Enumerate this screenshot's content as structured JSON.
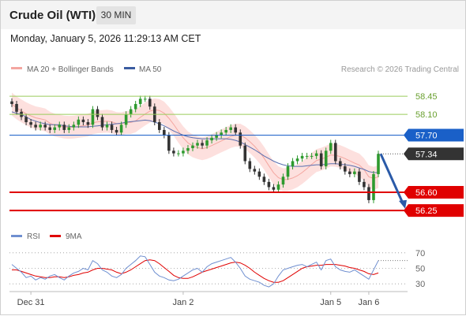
{
  "header": {
    "title": "Crude Oil (WTI)",
    "timeframe": "30 MIN",
    "timestamp": "Monday, January 5, 2026 11:29:13 AM CET"
  },
  "legend": {
    "items": [
      {
        "label": "MA 20 + Bollinger Bands",
        "color": "#f4a6a0"
      },
      {
        "label": "MA 50",
        "color": "#3a5ba0"
      }
    ],
    "rsi_items": [
      {
        "label": "RSI",
        "color": "#6f8fd0"
      },
      {
        "label": "9MA",
        "color": "#e00000"
      }
    ]
  },
  "copyright": "Research © 2026 Trading Central",
  "colors": {
    "pivot": "#1a60c8",
    "support": "#e00000",
    "resistance": "#9acc5a",
    "current": "#333333",
    "arrow": "#2a5aa8",
    "candle_up": "#2e9a2e",
    "candle_down": "#333333",
    "band": "#fde0de"
  },
  "chart_data": [
    {
      "type": "candlestick",
      "ylim": [
        56.1,
        58.8
      ],
      "levels": [
        {
          "value": 58.45,
          "label": "58.45",
          "kind": "resistance"
        },
        {
          "value": 58.1,
          "label": "58.10",
          "kind": "resistance"
        },
        {
          "value": 57.7,
          "label": "57.70",
          "kind": "pivot"
        },
        {
          "value": 57.34,
          "label": "57.34",
          "kind": "current"
        },
        {
          "value": 56.6,
          "label": "56.60",
          "kind": "support"
        },
        {
          "value": 56.25,
          "label": "56.25",
          "kind": "support"
        }
      ],
      "x_ticks": [
        "Dec 31",
        "Jan 2",
        "Jan 5",
        "Jan 6"
      ],
      "series": [
        {
          "name": "Price",
          "values": [
            58.3,
            58.15,
            58.05,
            57.95,
            57.9,
            57.85,
            57.9,
            57.85,
            57.8,
            57.85,
            57.9,
            57.8,
            57.85,
            57.9,
            58.0,
            57.95,
            57.9,
            58.2,
            58.05,
            57.85,
            57.9,
            57.8,
            57.75,
            57.9,
            58.1,
            58.2,
            58.3,
            58.4,
            58.4,
            58.25,
            57.95,
            57.8,
            57.7,
            57.4,
            57.35,
            57.35,
            57.4,
            57.45,
            57.5,
            57.55,
            57.5,
            57.6,
            57.65,
            57.7,
            57.75,
            57.8,
            57.85,
            57.75,
            57.5,
            57.2,
            57.05,
            57.0,
            56.9,
            56.8,
            56.7,
            56.65,
            56.75,
            56.9,
            57.1,
            57.2,
            57.25,
            57.3,
            57.3,
            57.3,
            57.35,
            57.1,
            57.4,
            57.55,
            57.2,
            57.1,
            57.0,
            56.95,
            57.0,
            56.8,
            56.7,
            56.45,
            56.95,
            57.34
          ]
        },
        {
          "name": "MA 50",
          "values": [
            58.15,
            58.12,
            58.1,
            58.05,
            58.0,
            57.97,
            57.94,
            57.92,
            57.9,
            57.9,
            57.9,
            57.88,
            57.87,
            57.86,
            57.86,
            57.86,
            57.86,
            57.87,
            57.88,
            57.89,
            57.9,
            57.91,
            57.92,
            57.93,
            57.95,
            57.96,
            57.97,
            57.98,
            57.99,
            57.98,
            57.95,
            57.92,
            57.88,
            57.83,
            57.78,
            57.74,
            57.7,
            57.67,
            57.65,
            57.64,
            57.63,
            57.63,
            57.63,
            57.63,
            57.63,
            57.63,
            57.62,
            57.6,
            57.57,
            57.52,
            57.47,
            57.42,
            57.36,
            57.3,
            57.25,
            57.2,
            57.16,
            57.13,
            57.11,
            57.1,
            57.1,
            57.1,
            57.11,
            57.12,
            57.13,
            57.13,
            57.14,
            57.15,
            57.15,
            57.14,
            57.13,
            57.12,
            57.1,
            57.07,
            57.04,
            57.0,
            56.98,
            56.98
          ]
        }
      ]
    },
    {
      "type": "line",
      "ylim": [
        20,
        80
      ],
      "y_ticks": [
        70,
        50,
        30
      ],
      "series": [
        {
          "name": "RSI",
          "values": [
            55,
            50,
            45,
            38,
            40,
            35,
            38,
            36,
            40,
            42,
            38,
            35,
            40,
            44,
            46,
            50,
            48,
            60,
            56,
            48,
            45,
            40,
            38,
            42,
            50,
            55,
            60,
            66,
            65,
            55,
            45,
            40,
            38,
            35,
            34,
            36,
            40,
            44,
            48,
            50,
            45,
            52,
            56,
            58,
            60,
            62,
            64,
            58,
            50,
            40,
            36,
            34,
            32,
            28,
            26,
            30,
            40,
            48,
            50,
            52,
            54,
            55,
            52,
            55,
            58,
            48,
            60,
            62,
            52,
            48,
            46,
            45,
            48,
            44,
            40,
            36,
            48,
            60
          ]
        },
        {
          "name": "9MA",
          "values": [
            48,
            48,
            46,
            44,
            42,
            40,
            39,
            38,
            38,
            39,
            39,
            38,
            39,
            41,
            42,
            44,
            45,
            48,
            50,
            50,
            49,
            48,
            45,
            43,
            45,
            48,
            52,
            56,
            60,
            61,
            60,
            56,
            51,
            46,
            41,
            38,
            37,
            37,
            39,
            42,
            45,
            47,
            49,
            51,
            53,
            55,
            57,
            58,
            57,
            54,
            50,
            45,
            41,
            37,
            34,
            32,
            32,
            34,
            38,
            42,
            46,
            50,
            52,
            53,
            54,
            54,
            55,
            55,
            55,
            54,
            53,
            51,
            50,
            48,
            46,
            43,
            42,
            44
          ]
        }
      ]
    }
  ]
}
